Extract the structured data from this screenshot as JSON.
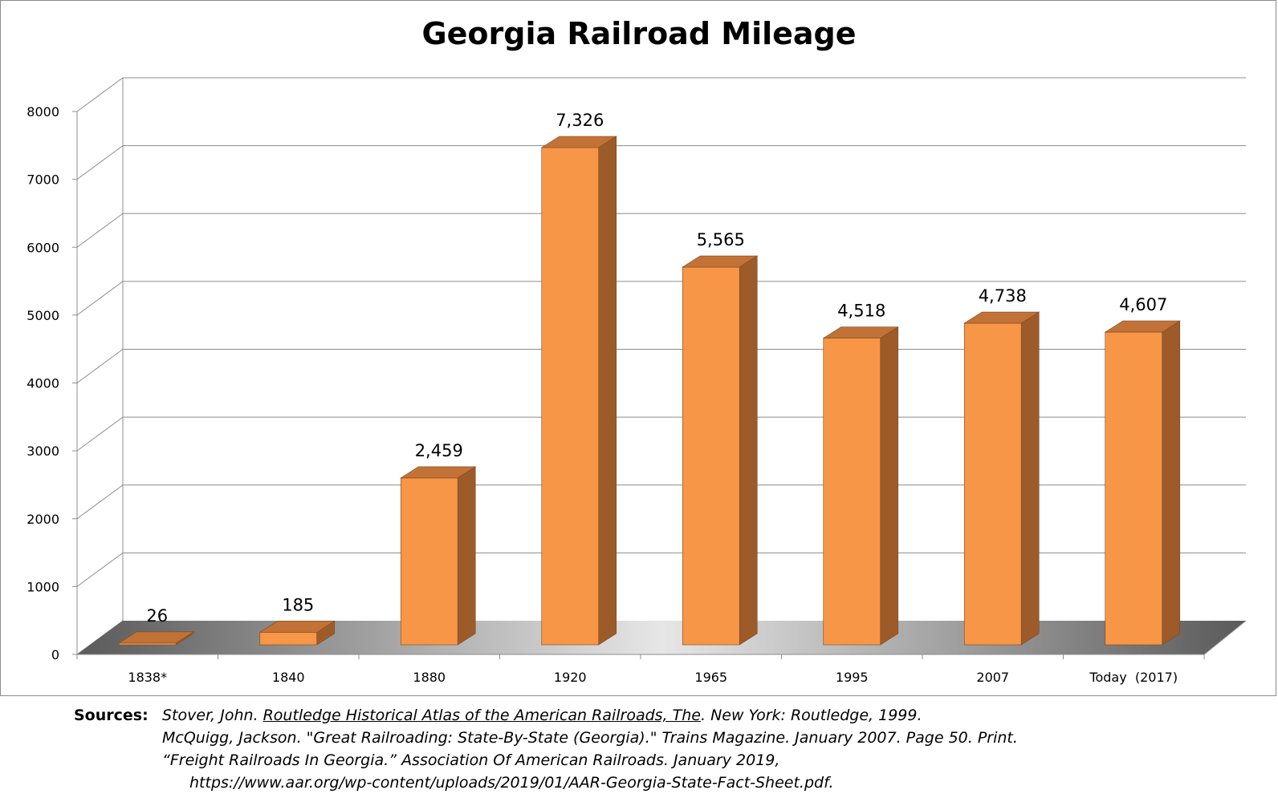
{
  "chart_data": {
    "type": "bar",
    "title": "Georgia Railroad Mileage",
    "categories": [
      "1838*",
      "1840",
      "1880",
      "1920",
      "1965",
      "1995",
      "2007",
      "Today  (2017)"
    ],
    "values": [
      26,
      185,
      2459,
      7326,
      5565,
      4518,
      4738,
      4607
    ],
    "value_labels": [
      "26",
      "185",
      "2,459",
      "7,326",
      "5,565",
      "4,518",
      "4,738",
      "4,607"
    ],
    "y_ticks": [
      "0",
      "1000",
      "2000",
      "3000",
      "4000",
      "5000",
      "6000",
      "7000",
      "8000"
    ],
    "ylim": [
      0,
      8000
    ],
    "grid": true,
    "legend": "none",
    "style": "3d",
    "colors": {
      "bar_front": "#f79646",
      "bar_side": "#9e5b2a",
      "bar_top": "#c27236",
      "gridline": "#8c8c8c"
    }
  },
  "sources": {
    "label": "Sources:",
    "entries": [
      {
        "before": "Stover, John. ",
        "title": "Routledge Historical Atlas of the American Railroads, The",
        "after": ". New York: Routledge, 1999."
      },
      {
        "before": "McQuigg, Jackson. \"Great Railroading: State-By-State (Georgia).\" Trains Magazine. January 2007. Page 50. Print.",
        "title": "",
        "after": ""
      },
      {
        "before": "“Freight Railroads In Georgia.” Association Of American Railroads. January 2019,",
        "title": "",
        "after": ""
      },
      {
        "before": "https://www.aar.org/wp-content/uploads/2019/01/AAR-Georgia-State-Fact-Sheet.pdf.",
        "title": "",
        "after": ""
      }
    ]
  }
}
